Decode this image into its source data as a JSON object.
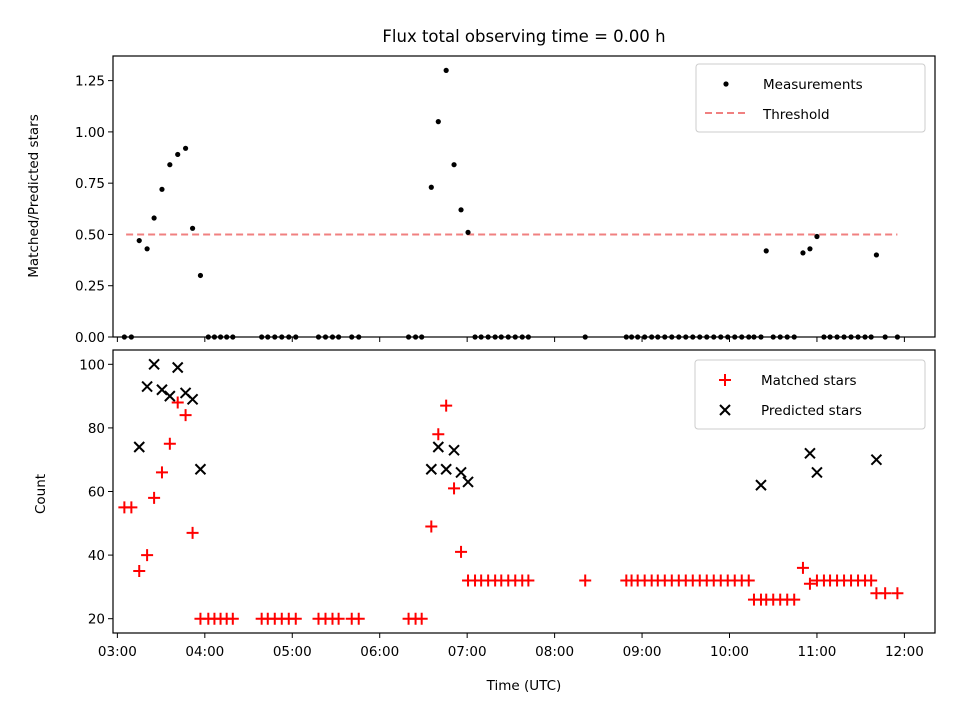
{
  "title": "Flux total observing time = 0.00 h",
  "colors": {
    "measurements": "#000000",
    "threshold": "#f08080",
    "matched": "#ff0000",
    "predicted": "#000000"
  },
  "chart_data": [
    {
      "type": "scatter",
      "ylabel": "Matched/Predicted stars",
      "xlim": [
        2.95,
        12.35
      ],
      "ylim": [
        0,
        1.37
      ],
      "yticks": [
        0.0,
        0.25,
        0.5,
        0.75,
        1.0,
        1.25
      ],
      "ytick_labels": [
        "0.00",
        "0.25",
        "0.50",
        "0.75",
        "1.00",
        "1.25"
      ],
      "legend": [
        "Measurements",
        "Threshold"
      ],
      "legend_position": "top-right",
      "threshold": {
        "value": 0.5,
        "x_range": [
          3.1,
          11.92
        ]
      },
      "series": [
        {
          "name": "Measurements",
          "marker": "dot",
          "x": [
            3.08,
            3.16,
            3.25,
            3.34,
            3.42,
            3.51,
            3.6,
            3.69,
            3.78,
            3.86,
            3.95,
            4.04,
            4.11,
            4.18,
            4.25,
            4.32,
            4.65,
            4.72,
            4.8,
            4.88,
            4.96,
            5.04,
            5.3,
            5.38,
            5.46,
            5.53,
            5.68,
            5.76,
            6.33,
            6.41,
            6.48,
            6.59,
            6.67,
            6.76,
            6.85,
            6.93,
            7.01,
            7.09,
            7.16,
            7.24,
            7.32,
            7.39,
            7.47,
            7.55,
            7.63,
            7.7,
            8.35,
            8.82,
            8.88,
            8.95,
            9.03,
            9.11,
            9.18,
            9.26,
            9.34,
            9.42,
            9.5,
            9.58,
            9.66,
            9.74,
            9.82,
            9.9,
            9.98,
            10.06,
            10.14,
            10.22,
            10.28,
            10.36,
            10.42,
            10.5,
            10.58,
            10.66,
            10.74,
            10.84,
            10.92,
            11.0,
            11.08,
            11.15,
            11.23,
            11.31,
            11.39,
            11.47,
            11.55,
            11.62,
            11.68,
            11.78,
            11.92
          ],
          "y": [
            0,
            0,
            0.47,
            0.43,
            0.58,
            0.72,
            0.84,
            0.89,
            0.92,
            0.53,
            0.3,
            0,
            0,
            0,
            0,
            0,
            0,
            0,
            0,
            0,
            0,
            0,
            0,
            0,
            0,
            0,
            0,
            0,
            0,
            0,
            0,
            0.73,
            1.05,
            1.3,
            0.84,
            0.62,
            0.51,
            0,
            0,
            0,
            0,
            0,
            0,
            0,
            0,
            0,
            0,
            0,
            0,
            0,
            0,
            0,
            0,
            0,
            0,
            0,
            0,
            0,
            0,
            0,
            0,
            0,
            0,
            0,
            0,
            0,
            0,
            0,
            0.42,
            0,
            0,
            0,
            0,
            0.41,
            0.43,
            0.49,
            0,
            0,
            0,
            0,
            0,
            0,
            0,
            0,
            0.4,
            0,
            0
          ]
        }
      ]
    },
    {
      "type": "scatter",
      "ylabel": "Count",
      "xlabel": "Time (UTC)",
      "xlim": [
        2.95,
        12.35
      ],
      "ylim": [
        15.5,
        104.5
      ],
      "yticks": [
        20,
        40,
        60,
        80,
        100
      ],
      "ytick_labels": [
        "20",
        "40",
        "60",
        "80",
        "100"
      ],
      "xticks": [
        3,
        4,
        5,
        6,
        7,
        8,
        9,
        10,
        11,
        12
      ],
      "xtick_labels": [
        "03:00",
        "04:00",
        "05:00",
        "06:00",
        "07:00",
        "08:00",
        "09:00",
        "10:00",
        "11:00",
        "12:00"
      ],
      "legend": [
        "Matched stars",
        "Predicted stars"
      ],
      "legend_position": "top-right",
      "series": [
        {
          "name": "Matched stars",
          "marker": "plus",
          "x": [
            3.08,
            3.16,
            3.25,
            3.34,
            3.42,
            3.51,
            3.6,
            3.69,
            3.78,
            3.86,
            3.95,
            4.04,
            4.11,
            4.18,
            4.25,
            4.32,
            4.65,
            4.72,
            4.8,
            4.88,
            4.96,
            5.04,
            5.3,
            5.38,
            5.46,
            5.53,
            5.68,
            5.76,
            6.33,
            6.41,
            6.48,
            6.59,
            6.67,
            6.76,
            6.85,
            6.93,
            7.01,
            7.09,
            7.16,
            7.24,
            7.32,
            7.39,
            7.47,
            7.55,
            7.63,
            7.7,
            8.35,
            8.82,
            8.88,
            8.95,
            9.03,
            9.11,
            9.18,
            9.26,
            9.34,
            9.42,
            9.5,
            9.58,
            9.66,
            9.74,
            9.82,
            9.9,
            9.98,
            10.06,
            10.14,
            10.22,
            10.28,
            10.36,
            10.42,
            10.5,
            10.58,
            10.66,
            10.74,
            10.84,
            10.92,
            11.0,
            11.08,
            11.15,
            11.23,
            11.31,
            11.39,
            11.47,
            11.55,
            11.62,
            11.68,
            11.78,
            11.92
          ],
          "y": [
            55,
            55,
            35,
            40,
            58,
            66,
            75,
            88,
            84,
            47,
            20,
            20,
            20,
            20,
            20,
            20,
            20,
            20,
            20,
            20,
            20,
            20,
            20,
            20,
            20,
            20,
            20,
            20,
            20,
            20,
            20,
            49,
            78,
            87,
            61,
            41,
            32,
            32,
            32,
            32,
            32,
            32,
            32,
            32,
            32,
            32,
            32,
            32,
            32,
            32,
            32,
            32,
            32,
            32,
            32,
            32,
            32,
            32,
            32,
            32,
            32,
            32,
            32,
            32,
            32,
            32,
            26,
            26,
            26,
            26,
            26,
            26,
            26,
            36,
            31,
            32,
            32,
            32,
            32,
            32,
            32,
            32,
            32,
            32,
            28,
            28,
            28
          ]
        },
        {
          "name": "Predicted stars",
          "marker": "x",
          "x": [
            3.25,
            3.34,
            3.42,
            3.51,
            3.6,
            3.69,
            3.78,
            3.86,
            3.95,
            6.59,
            6.67,
            6.76,
            6.85,
            6.93,
            7.01,
            10.36,
            10.92,
            11.0,
            11.68
          ],
          "y": [
            74,
            93,
            100,
            92,
            90,
            99,
            91,
            89,
            67,
            67,
            74,
            67,
            73,
            66,
            63,
            62,
            72,
            66,
            70
          ]
        }
      ]
    }
  ]
}
